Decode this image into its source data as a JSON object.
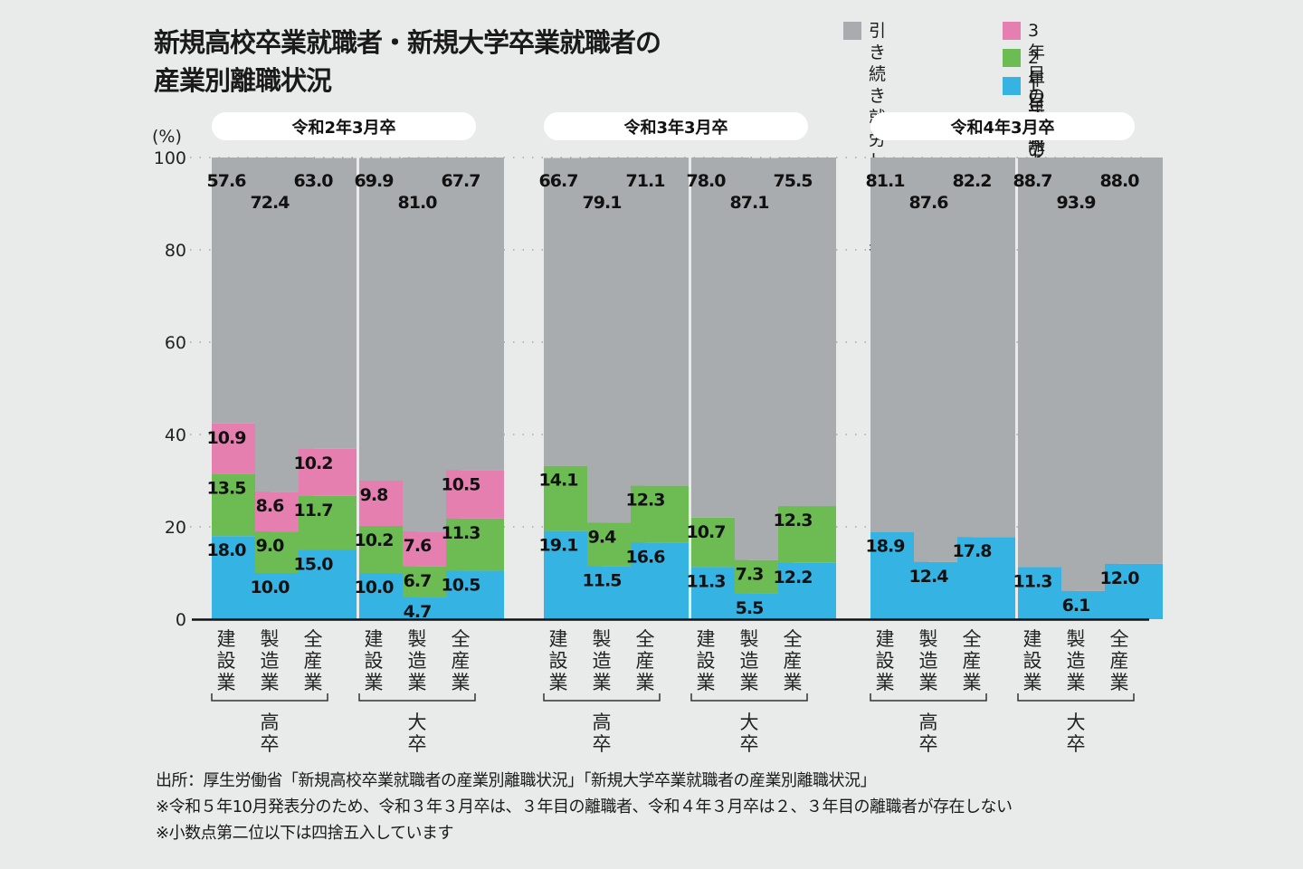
{
  "title_lines": [
    "新規高校卒業就職者・新規大学卒業就職者の",
    "産業別離職状況"
  ],
  "legend": [
    {
      "key": "remaining",
      "label": "引き続き就労\nしている者",
      "color": "#a9acaf"
    },
    {
      "key": "year3",
      "label": "3年目の離職者",
      "color": "#e57fb0"
    },
    {
      "key": "year2",
      "label": "2年目の離職者",
      "color": "#6cbc53"
    },
    {
      "key": "year1",
      "label": "1年目の離職者",
      "color": "#35b4e4"
    }
  ],
  "footer": [
    "出所：厚生労働省「新規高校卒業就職者の産業別離職状況」「新規大学卒業就職者の産業別離職状況」",
    "※令和５年10月発表分のため、令和３年３月卒は、３年目の離職者、令和４年３月卒は２、３年目の離職者が存在しない",
    "※小数点第二位以下は四捨五入しています"
  ],
  "chart_data": {
    "type": "bar",
    "stacked": true,
    "title": "新規高校卒業就職者・新規大学卒業就職者の産業別離職状況",
    "ylabel": "(%)",
    "ylim": [
      0,
      100
    ],
    "yticks": [
      0,
      20,
      40,
      60,
      80,
      100
    ],
    "grid": true,
    "legend_position": "top-right",
    "industries": [
      "建設業",
      "製造業",
      "全産業"
    ],
    "cohorts": [
      {
        "label": "令和2年3月卒",
        "groups": [
          {
            "label": "高卒",
            "bars": [
              {
                "industry": "建設業",
                "year1": 18.0,
                "year2": 13.5,
                "year3": 10.9,
                "remaining": 57.6
              },
              {
                "industry": "製造業",
                "year1": 10.0,
                "year2": 9.0,
                "year3": 8.6,
                "remaining": 72.4
              },
              {
                "industry": "全産業",
                "year1": 15.0,
                "year2": 11.7,
                "year3": 10.2,
                "remaining": 63.0
              }
            ]
          },
          {
            "label": "大卒",
            "bars": [
              {
                "industry": "建設業",
                "year1": 10.0,
                "year2": 10.2,
                "year3": 9.8,
                "remaining": 69.9
              },
              {
                "industry": "製造業",
                "year1": 4.7,
                "year2": 6.7,
                "year3": 7.6,
                "remaining": 81.0
              },
              {
                "industry": "全産業",
                "year1": 10.5,
                "year2": 11.3,
                "year3": 10.5,
                "remaining": 67.7
              }
            ]
          }
        ]
      },
      {
        "label": "令和3年3月卒",
        "groups": [
          {
            "label": "高卒",
            "bars": [
              {
                "industry": "建設業",
                "year1": 19.1,
                "year2": 14.1,
                "year3": null,
                "remaining": 66.7
              },
              {
                "industry": "製造業",
                "year1": 11.5,
                "year2": 9.4,
                "year3": null,
                "remaining": 79.1
              },
              {
                "industry": "全産業",
                "year1": 16.6,
                "year2": 12.3,
                "year3": null,
                "remaining": 71.1
              }
            ]
          },
          {
            "label": "大卒",
            "bars": [
              {
                "industry": "建設業",
                "year1": 11.3,
                "year2": 10.7,
                "year3": null,
                "remaining": 78.0
              },
              {
                "industry": "製造業",
                "year1": 5.5,
                "year2": 7.3,
                "year3": null,
                "remaining": 87.1
              },
              {
                "industry": "全産業",
                "year1": 12.2,
                "year2": 12.3,
                "year3": null,
                "remaining": 75.5
              }
            ]
          }
        ]
      },
      {
        "label": "令和4年3月卒",
        "groups": [
          {
            "label": "高卒",
            "bars": [
              {
                "industry": "建設業",
                "year1": 18.9,
                "year2": null,
                "year3": null,
                "remaining": 81.1
              },
              {
                "industry": "製造業",
                "year1": 12.4,
                "year2": null,
                "year3": null,
                "remaining": 87.6
              },
              {
                "industry": "全産業",
                "year1": 17.8,
                "year2": null,
                "year3": null,
                "remaining": 82.2
              }
            ]
          },
          {
            "label": "大卒",
            "bars": [
              {
                "industry": "建設業",
                "year1": 11.3,
                "year2": null,
                "year3": null,
                "remaining": 88.7
              },
              {
                "industry": "製造業",
                "year1": 6.1,
                "year2": null,
                "year3": null,
                "remaining": 93.9
              },
              {
                "industry": "全産業",
                "year1": 12.0,
                "year2": null,
                "year3": null,
                "remaining": 88.0
              }
            ]
          }
        ]
      }
    ]
  }
}
